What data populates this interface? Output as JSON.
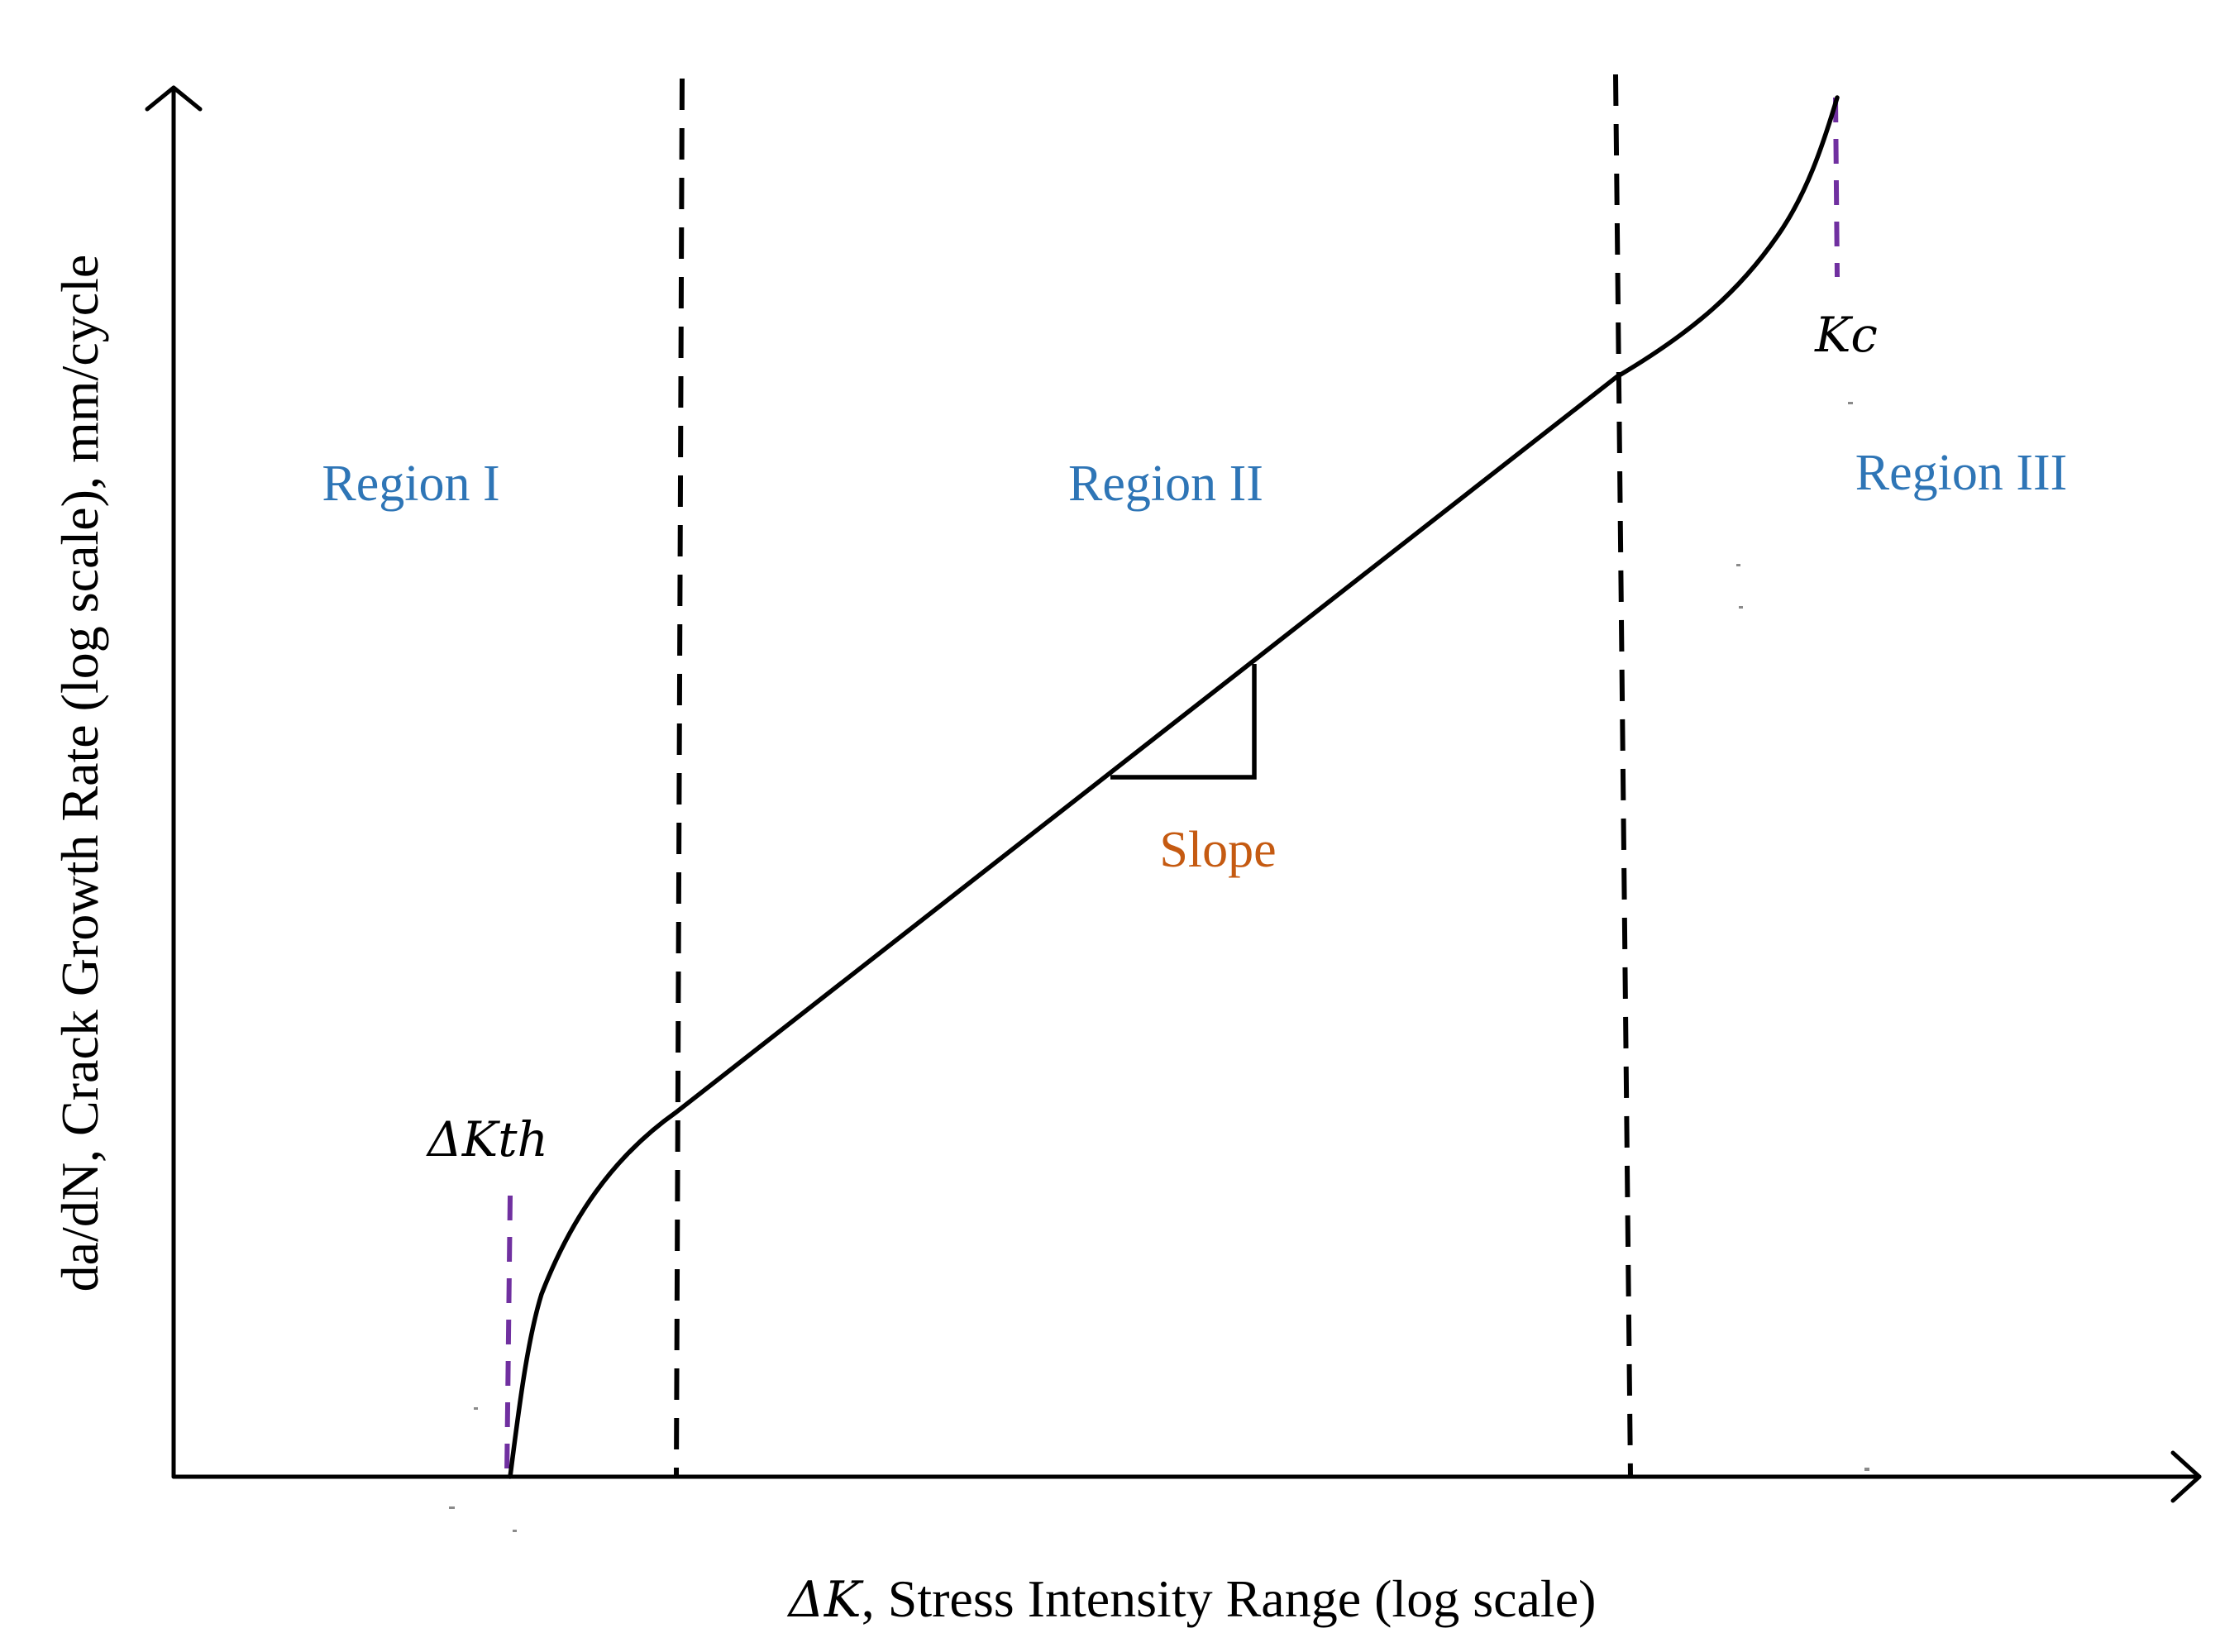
{
  "diagram": {
    "x_axis_label_italic": "ΔK",
    "x_axis_label_rest": ", Stress Intensity Range (log scale)",
    "y_axis_label": "da/dN, Crack Growth Rate (log scale), mm/cycle",
    "regions": [
      {
        "label": "Region I"
      },
      {
        "label": "Region II"
      },
      {
        "label": "Region III"
      }
    ],
    "threshold_label": "ΔKth",
    "critical_label": "Kc",
    "slope_label": "Slope",
    "colors": {
      "region_text": "#2e75b6",
      "slope_text": "#c55a11",
      "marker_dash": "#7030a0",
      "lines": "#000000"
    }
  }
}
